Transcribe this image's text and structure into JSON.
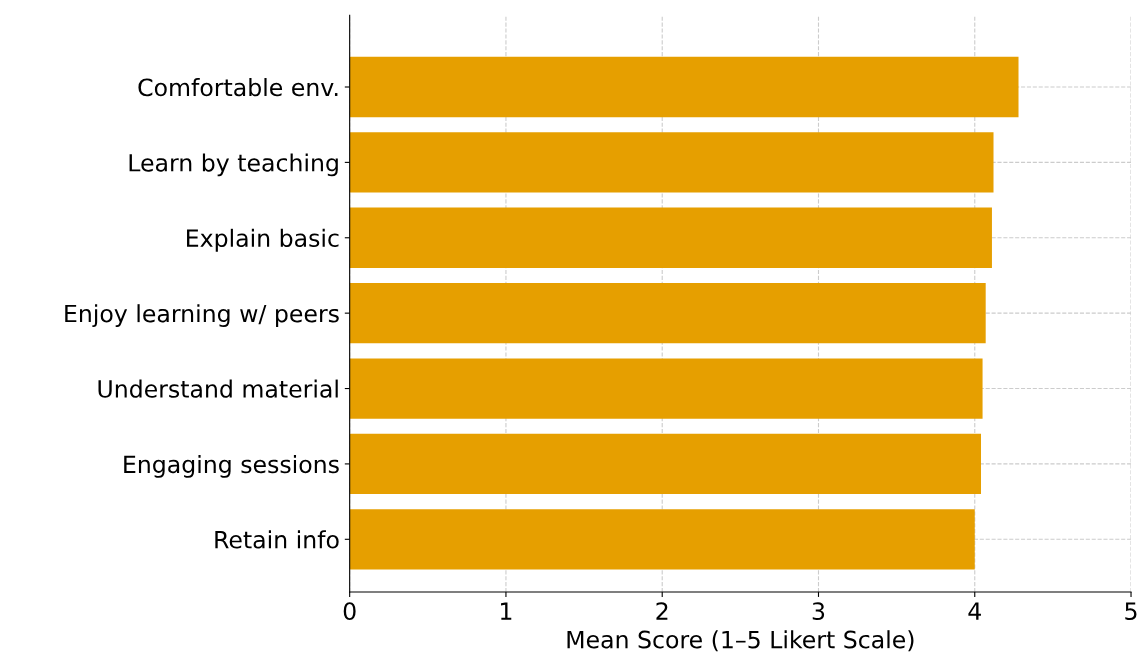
{
  "chart_data": {
    "type": "bar",
    "orientation": "horizontal",
    "xlabel": "Mean Score (1–5 Likert Scale)",
    "categories": [
      "Comfortable env.",
      "Learn by teaching",
      "Explain basic",
      "Enjoy learning w/ peers",
      "Understand material",
      "Engaging sessions",
      "Retain info"
    ],
    "values": [
      4.28,
      4.12,
      4.11,
      4.07,
      4.05,
      4.04,
      4.0
    ],
    "color": "#e69f00",
    "xlim": [
      0,
      5
    ],
    "xticks": [
      0,
      1,
      2,
      3,
      4,
      5
    ],
    "grid": true
  }
}
